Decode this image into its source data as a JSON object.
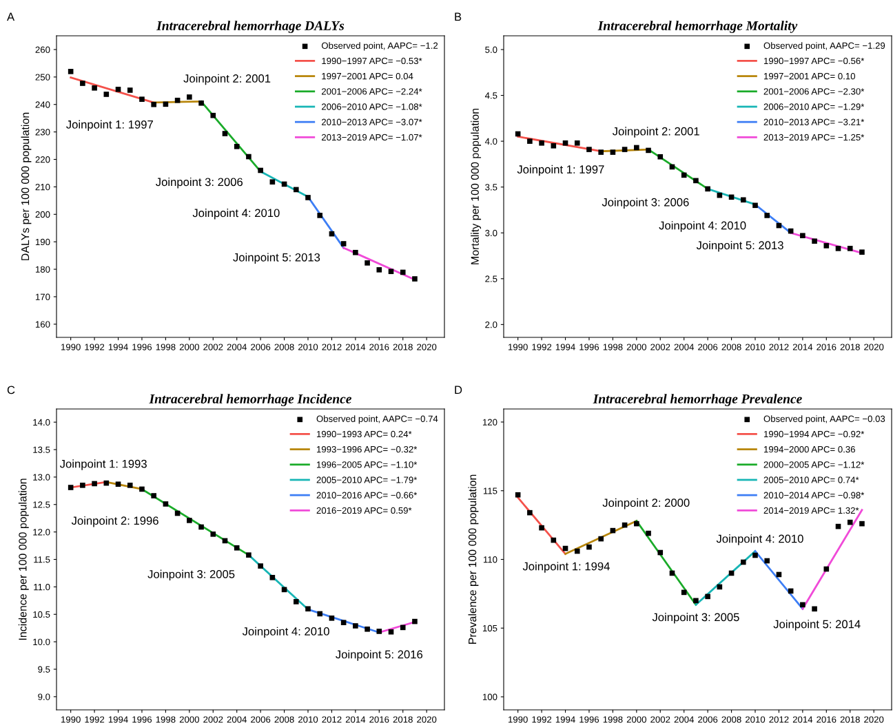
{
  "chart_data": [
    {
      "type": "line",
      "title": "Intracerebral hemorrhage DALYs",
      "ylabel": "DALYs per 100 000 population",
      "legend": "top right",
      "xlim": [
        1988.8,
        2021.5
      ],
      "xticks": [
        1990,
        1992,
        1994,
        1996,
        1998,
        2000,
        2002,
        2004,
        2006,
        2008,
        2010,
        2012,
        2014,
        2016,
        2018,
        2020
      ],
      "ylim": [
        155.2,
        265
      ],
      "yticks": [
        160,
        170,
        180,
        190,
        200,
        210,
        220,
        230,
        240,
        250,
        260
      ],
      "series": [
        {
          "type": "scatter",
          "marker": "square",
          "name": "Observed point, AAPC= −1.2",
          "color": "#000000",
          "x": [
            1990,
            1991,
            1992,
            1993,
            1994,
            1995,
            1996,
            1997,
            1998,
            1999,
            2000,
            2001,
            2002,
            2003,
            2004,
            2005,
            2006,
            2007,
            2008,
            2009,
            2010,
            2011,
            2012,
            2013,
            2014,
            2015,
            2016,
            2017,
            2018,
            2019
          ],
          "values": [
            252.0,
            247.7,
            246.0,
            243.7,
            245.5,
            245.2,
            241.9,
            240.0,
            240.1,
            241.5,
            242.7,
            240.5,
            236.0,
            229.4,
            224.7,
            221.0,
            216.0,
            211.8,
            211.0,
            209.0,
            206.1,
            199.6,
            192.9,
            189.3,
            186.1,
            182.3,
            179.8,
            179.2,
            178.9,
            176.5
          ]
        },
        {
          "name": "1990−1997 APC= −0.53*",
          "color": "#f4514a",
          "x": [
            1990,
            1997
          ],
          "values": [
            249.8,
            240.7
          ]
        },
        {
          "name": "1997−2001 APC= 0.04",
          "color": "#b8860b",
          "x": [
            1997,
            2001
          ],
          "values": [
            240.7,
            241.1
          ]
        },
        {
          "name": "2001−2006 APC= −2.24*",
          "color": "#1aab29",
          "x": [
            2001,
            2006
          ],
          "values": [
            241.1,
            215.6
          ]
        },
        {
          "name": "2006−2010 APC= −1.08*",
          "color": "#17b5b5",
          "x": [
            2006,
            2010
          ],
          "values": [
            215.6,
            206.4
          ]
        },
        {
          "name": "2010−2013 APC= −3.07*",
          "color": "#3d7ef5",
          "x": [
            2010,
            2013
          ],
          "values": [
            206.4,
            187.8
          ]
        },
        {
          "name": "2013−2019 APC= −1.07*",
          "color": "#f04ad8",
          "x": [
            2013,
            2019
          ],
          "values": [
            187.8,
            176.2
          ]
        }
      ],
      "annotations": [
        "A",
        {
          "text": "Joinpoint 1: 1997",
          "x": 1997,
          "y": 240.7
        },
        {
          "text": "Joinpoint 2: 2001",
          "x": 2001,
          "y": 241.1
        },
        {
          "text": "Joinpoint 3: 2006",
          "x": 2006,
          "y": 215.6
        },
        {
          "text": "Joinpoint 4: 2010",
          "x": 2010,
          "y": 206.4
        },
        {
          "text": "Joinpoint 5: 2013",
          "x": 2013,
          "y": 187.8
        }
      ]
    },
    {
      "type": "line",
      "title": "Intracerebral hemorrhage Mortality",
      "ylabel": "Mortality per 100 000 population",
      "legend": "top right",
      "xlim": [
        1988.8,
        2021.5
      ],
      "xticks": [
        1990,
        1992,
        1994,
        1996,
        1998,
        2000,
        2002,
        2004,
        2006,
        2008,
        2010,
        2012,
        2014,
        2016,
        2018,
        2020
      ],
      "ylim": [
        1.86,
        5.15
      ],
      "yticks": [
        {
          "value": 2,
          "label": "2.0"
        },
        2.5,
        {
          "value": 3,
          "label": "3.0"
        },
        3.5,
        {
          "value": 4,
          "label": "4.0"
        },
        4.5,
        {
          "value": 5,
          "label": "5.0"
        }
      ],
      "series": [
        {
          "type": "scatter",
          "marker": "square",
          "name": "Observed point, AAPC= −1.29",
          "color": "#000000",
          "x": [
            1990,
            1991,
            1992,
            1993,
            1994,
            1995,
            1996,
            1997,
            1998,
            1999,
            2000,
            2001,
            2002,
            2003,
            2004,
            2005,
            2006,
            2007,
            2008,
            2009,
            2010,
            2011,
            2012,
            2013,
            2014,
            2015,
            2016,
            2017,
            2018,
            2019
          ],
          "values": [
            4.08,
            4.0,
            3.98,
            3.95,
            3.98,
            3.98,
            3.91,
            3.88,
            3.88,
            3.91,
            3.93,
            3.9,
            3.83,
            3.72,
            3.63,
            3.57,
            3.48,
            3.41,
            3.39,
            3.36,
            3.3,
            3.19,
            3.08,
            3.02,
            2.97,
            2.91,
            2.86,
            2.83,
            2.83,
            2.79
          ]
        },
        {
          "name": "1990−1997 APC= −0.56*",
          "color": "#f4514a",
          "x": [
            1990,
            1997
          ],
          "values": [
            4.05,
            3.89
          ]
        },
        {
          "name": "1997−2001 APC= 0.10",
          "color": "#b8860b",
          "x": [
            1997,
            2001
          ],
          "values": [
            3.89,
            3.91
          ]
        },
        {
          "name": "2001−2006 APC= −2.30*",
          "color": "#1aab29",
          "x": [
            2001,
            2006
          ],
          "values": [
            3.91,
            3.48
          ]
        },
        {
          "name": "2006−2010 APC= −1.29*",
          "color": "#17b5b5",
          "x": [
            2006,
            2010
          ],
          "values": [
            3.48,
            3.31
          ]
        },
        {
          "name": "2010−2013 APC= −3.21*",
          "color": "#3d7ef5",
          "x": [
            2010,
            2013
          ],
          "values": [
            3.31,
            3.0
          ]
        },
        {
          "name": "2013−2019 APC= −1.25*",
          "color": "#f04ad8",
          "x": [
            2013,
            2019
          ],
          "values": [
            3.0,
            2.78
          ]
        }
      ],
      "annotations": [
        "B",
        {
          "text": "Joinpoint 1: 1997",
          "x": 1997,
          "y": 3.89
        },
        {
          "text": "Joinpoint 2: 2001",
          "x": 2001,
          "y": 3.91
        },
        {
          "text": "Joinpoint 3: 2006",
          "x": 2006,
          "y": 3.48
        },
        {
          "text": "Joinpoint 4: 2010",
          "x": 2010,
          "y": 3.31
        },
        {
          "text": "Joinpoint 5: 2013",
          "x": 2013,
          "y": 3.0
        }
      ]
    },
    {
      "type": "line",
      "title": "Intracerebral hemorrhage Incidence",
      "ylabel": "Incidence per 100 000 population",
      "legend": "top right",
      "xlim": [
        1988.8,
        2021.5
      ],
      "xticks": [
        1990,
        1992,
        1994,
        1996,
        1998,
        2000,
        2002,
        2004,
        2006,
        2008,
        2010,
        2012,
        2014,
        2016,
        2018,
        2020
      ],
      "ylim": [
        8.76,
        14.24
      ],
      "yticks": [
        {
          "value": 9,
          "label": "9.0"
        },
        9.5,
        {
          "value": 10,
          "label": "10.0"
        },
        10.5,
        {
          "value": 11,
          "label": "11.0"
        },
        11.5,
        {
          "value": 12,
          "label": "12.0"
        },
        12.5,
        {
          "value": 13,
          "label": "13.0"
        },
        13.5,
        {
          "value": 14,
          "label": "14.0"
        }
      ],
      "series": [
        {
          "type": "scatter",
          "marker": "square",
          "name": "Observed point, AAPC= −0.74",
          "color": "#000000",
          "x": [
            1990,
            1991,
            1992,
            1993,
            1994,
            1995,
            1996,
            1997,
            1998,
            1999,
            2000,
            2001,
            2002,
            2003,
            2004,
            2005,
            2006,
            2007,
            2008,
            2009,
            2010,
            2011,
            2012,
            2013,
            2014,
            2015,
            2016,
            2017,
            2018,
            2019
          ],
          "values": [
            12.81,
            12.85,
            12.88,
            12.89,
            12.87,
            12.85,
            12.78,
            12.66,
            12.51,
            12.34,
            12.21,
            12.09,
            11.96,
            11.84,
            11.71,
            11.58,
            11.38,
            11.17,
            10.95,
            10.73,
            10.6,
            10.51,
            10.43,
            10.35,
            10.29,
            10.23,
            10.19,
            10.18,
            10.26,
            10.37
          ]
        },
        {
          "name": "1990−1993 APC= 0.24*",
          "color": "#f4514a",
          "x": [
            1990,
            1993
          ],
          "values": [
            12.81,
            12.91
          ]
        },
        {
          "name": "1993−1996 APC= −0.32*",
          "color": "#b8860b",
          "x": [
            1993,
            1996
          ],
          "values": [
            12.91,
            12.78
          ]
        },
        {
          "name": "1996−2005 APC= −1.10*",
          "color": "#1aab29",
          "x": [
            1996,
            2005
          ],
          "values": [
            12.78,
            11.58
          ]
        },
        {
          "name": "2005−2010 APC= −1.79*",
          "color": "#17b5b5",
          "x": [
            2005,
            2010
          ],
          "values": [
            11.58,
            10.59
          ]
        },
        {
          "name": "2010−2016 APC= −0.66*",
          "color": "#3d7ef5",
          "x": [
            2010,
            2016
          ],
          "values": [
            10.59,
            10.17
          ]
        },
        {
          "name": "2016−2019 APC= 0.59*",
          "color": "#f04ad8",
          "x": [
            2016,
            2019
          ],
          "values": [
            10.17,
            10.36
          ]
        }
      ],
      "annotations": [
        "C",
        {
          "text": "Joinpoint 1: 1993",
          "x": 1993,
          "y": 12.91
        },
        {
          "text": "Joinpoint 2: 1996",
          "x": 1996,
          "y": 12.78
        },
        {
          "text": "Joinpoint 3: 2005",
          "x": 2005,
          "y": 11.58
        },
        {
          "text": "Joinpoint 4: 2010",
          "x": 2010,
          "y": 10.59
        },
        {
          "text": "Joinpoint 5: 2016",
          "x": 2016,
          "y": 10.17
        }
      ]
    },
    {
      "type": "line",
      "title": "Intracerebral hemorrhage Prevalence",
      "ylabel": "Prevalence per 100 000 population",
      "legend": "top right",
      "xlim": [
        1988.8,
        2021.5
      ],
      "xticks": [
        1990,
        1992,
        1994,
        1996,
        1998,
        2000,
        2002,
        2004,
        2006,
        2008,
        2010,
        2012,
        2014,
        2016,
        2018,
        2020
      ],
      "ylim": [
        99.05,
        120.95
      ],
      "yticks": [
        100,
        105,
        110,
        115,
        120
      ],
      "series": [
        {
          "type": "scatter",
          "marker": "square",
          "name": "Observed point, AAPC= −0.03",
          "color": "#000000",
          "x": [
            1990,
            1991,
            1992,
            1993,
            1994,
            1995,
            1996,
            1997,
            1998,
            1999,
            2000,
            2001,
            2002,
            2003,
            2004,
            2005,
            2006,
            2007,
            2008,
            2009,
            2010,
            2011,
            2012,
            2013,
            2014,
            2015,
            2016,
            2017,
            2018,
            2019
          ],
          "values": [
            114.7,
            113.4,
            112.3,
            111.4,
            110.8,
            110.6,
            110.9,
            111.5,
            112.1,
            112.5,
            112.6,
            111.9,
            110.5,
            109.0,
            107.6,
            107.0,
            107.3,
            108.0,
            109.0,
            109.8,
            110.3,
            109.9,
            108.9,
            107.7,
            106.7,
            106.4,
            109.3,
            112.4,
            112.7,
            112.6
          ]
        },
        {
          "name": "1990−1994 APC= −0.92*",
          "color": "#f4514a",
          "x": [
            1990,
            1994
          ],
          "values": [
            114.5,
            110.4
          ]
        },
        {
          "name": "1994−2000 APC= 0.36",
          "color": "#b8860b",
          "x": [
            1994,
            2000
          ],
          "values": [
            110.4,
            112.8
          ]
        },
        {
          "name": "2000−2005 APC= −1.12*",
          "color": "#1aab29",
          "x": [
            2000,
            2005
          ],
          "values": [
            112.8,
            106.7
          ]
        },
        {
          "name": "2005−2010 APC= 0.74*",
          "color": "#17b5b5",
          "x": [
            2005,
            2010
          ],
          "values": [
            106.7,
            110.6
          ]
        },
        {
          "name": "2010−2014 APC= −0.98*",
          "color": "#3d7ef5",
          "x": [
            2010,
            2014
          ],
          "values": [
            110.6,
            106.4
          ]
        },
        {
          "name": "2014−2019 APC= 1.32*",
          "color": "#f04ad8",
          "x": [
            2014,
            2019
          ],
          "values": [
            106.4,
            113.6
          ]
        }
      ],
      "annotations": [
        "D",
        {
          "text": "Joinpoint 1: 1994",
          "x": 1994,
          "y": 110.4
        },
        {
          "text": "Joinpoint 2: 2000",
          "x": 2000,
          "y": 112.8
        },
        {
          "text": "Joinpoint 3: 2005",
          "x": 2005,
          "y": 106.7
        },
        {
          "text": "Joinpoint 4: 2010",
          "x": 2010,
          "y": 110.6
        },
        {
          "text": "Joinpoint 5: 2014",
          "x": 2014,
          "y": 106.4
        }
      ]
    }
  ]
}
